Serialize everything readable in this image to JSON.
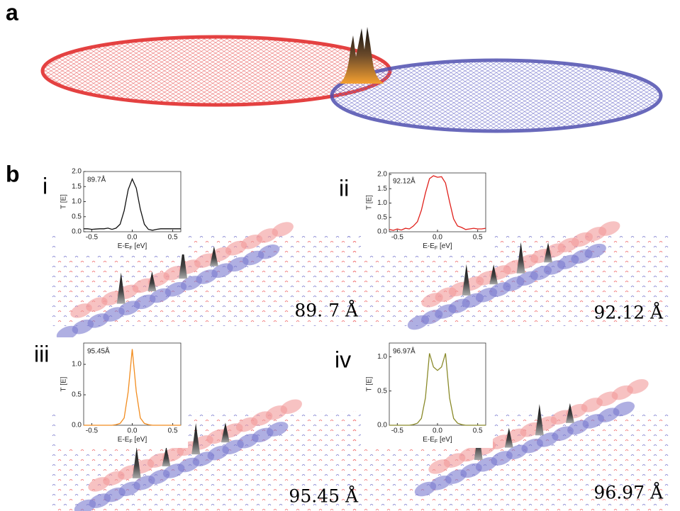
{
  "panels": {
    "a": "a",
    "b": "b",
    "i": "i",
    "ii": "ii",
    "iii": "iii",
    "iv": "iv"
  },
  "distances": [
    "89. 7 Å",
    "92.12 Å",
    "95.45 Å",
    "96.97 Å"
  ],
  "chart_data": [
    {
      "type": "line",
      "annotation": "89.7Å",
      "color": "#111111",
      "xlabel": [
        "E-E",
        "F",
        " [eV]"
      ],
      "ylabel": "T [E]",
      "x": [
        -0.6,
        -0.55,
        -0.5,
        -0.45,
        -0.4,
        -0.35,
        -0.3,
        -0.25,
        -0.2,
        -0.15,
        -0.1,
        -0.05,
        0,
        0.05,
        0.1,
        0.15,
        0.2,
        0.25,
        0.3,
        0.35,
        0.4,
        0.45,
        0.5,
        0.55,
        0.6
      ],
      "values": [
        0.1,
        0.1,
        0.08,
        0.09,
        0.1,
        0.1,
        0.12,
        0.08,
        0.12,
        0.25,
        0.7,
        1.4,
        1.75,
        1.45,
        0.75,
        0.25,
        0.08,
        0.05,
        0.08,
        0.1,
        0.1,
        0.1,
        0.1,
        0.1,
        0.1
      ],
      "xlim": [
        -0.6,
        0.6
      ],
      "xticks": [
        -0.5,
        {
          "value": 0,
          "label": "0.0"
        },
        0.5
      ],
      "ylim": [
        0,
        2.0
      ],
      "yticks": [
        {
          "value": 0,
          "label": "0.0"
        },
        0.5,
        {
          "value": 1,
          "label": "1.0"
        },
        1.5,
        {
          "value": 2,
          "label": "2.0"
        }
      ]
    },
    {
      "type": "line",
      "annotation": "92.12Å",
      "color": "#e0201b",
      "xlabel": [
        "E-E",
        "F",
        " [eV]"
      ],
      "ylabel": "T [E]",
      "x": [
        -0.6,
        -0.55,
        -0.5,
        -0.45,
        -0.4,
        -0.35,
        -0.3,
        -0.25,
        -0.2,
        -0.15,
        -0.1,
        -0.05,
        0,
        0.05,
        0.1,
        0.15,
        0.2,
        0.25,
        0.3,
        0.35,
        0.4,
        0.45,
        0.5,
        0.55,
        0.6
      ],
      "values": [
        0.08,
        0.05,
        0.1,
        0.06,
        0.12,
        0.1,
        0.2,
        0.35,
        0.75,
        1.35,
        1.85,
        1.95,
        1.9,
        1.92,
        1.7,
        1.05,
        0.45,
        0.2,
        0.15,
        0.08,
        0.1,
        0.12,
        0.1,
        0.1,
        0.12
      ],
      "xlim": [
        -0.6,
        0.6
      ],
      "xticks": [
        -0.5,
        {
          "value": 0,
          "label": "0.0"
        },
        0.5
      ],
      "ylim": [
        0,
        2.05
      ],
      "yticks": [
        {
          "value": 0,
          "label": "0.0"
        },
        0.5,
        {
          "value": 1,
          "label": "1.0"
        },
        1.5,
        {
          "value": 2,
          "label": "2.0"
        }
      ]
    },
    {
      "type": "line",
      "annotation": "95.45Å",
      "color": "#f28c1e",
      "xlabel": [
        "E-E",
        "F",
        " [eV]"
      ],
      "ylabel": "T [E]",
      "x": [
        -0.6,
        -0.55,
        -0.5,
        -0.45,
        -0.4,
        -0.35,
        -0.3,
        -0.25,
        -0.2,
        -0.15,
        -0.1,
        -0.05,
        0,
        0.05,
        0.1,
        0.15,
        0.2,
        0.25,
        0.3,
        0.35,
        0.4,
        0.45,
        0.5,
        0.55,
        0.6
      ],
      "values": [
        0,
        0,
        0,
        0,
        0,
        0,
        0,
        0,
        0.01,
        0.03,
        0.12,
        0.55,
        1.25,
        0.55,
        0.12,
        0.03,
        0.01,
        0,
        0,
        0,
        0,
        0,
        0,
        0,
        0
      ],
      "xlim": [
        -0.6,
        0.6
      ],
      "xticks": [
        -0.5,
        {
          "value": 0,
          "label": "0.0"
        },
        0.5
      ],
      "ylim": [
        0,
        1.35
      ],
      "yticks": [
        {
          "value": 0,
          "label": "0.0"
        },
        0.5,
        {
          "value": 1,
          "label": "1.0"
        }
      ]
    },
    {
      "type": "line",
      "annotation": "96.97Å",
      "color": "#8a8a2a",
      "xlabel": [
        "E-E",
        "F",
        " [eV]"
      ],
      "ylabel": "T [E]",
      "x": [
        -0.6,
        -0.55,
        -0.5,
        -0.45,
        -0.4,
        -0.35,
        -0.3,
        -0.25,
        -0.2,
        -0.15,
        -0.1,
        -0.05,
        0,
        0.05,
        0.1,
        0.15,
        0.2,
        0.25,
        0.3,
        0.35,
        0.4,
        0.45,
        0.5,
        0.55,
        0.6
      ],
      "values": [
        0,
        0,
        0,
        0,
        0,
        0,
        0.01,
        0.03,
        0.1,
        0.4,
        1.05,
        0.85,
        0.8,
        0.85,
        1.05,
        0.4,
        0.1,
        0.03,
        0.01,
        0,
        0,
        0,
        0,
        0,
        0
      ],
      "xlim": [
        -0.6,
        0.6
      ],
      "xticks": [
        -0.5,
        {
          "value": 0,
          "label": "0.0"
        },
        0.5
      ],
      "ylim": [
        0,
        1.2
      ],
      "yticks": [
        {
          "value": 0,
          "label": "0.0"
        },
        0.5,
        {
          "value": 1,
          "label": "1.0"
        }
      ]
    }
  ]
}
